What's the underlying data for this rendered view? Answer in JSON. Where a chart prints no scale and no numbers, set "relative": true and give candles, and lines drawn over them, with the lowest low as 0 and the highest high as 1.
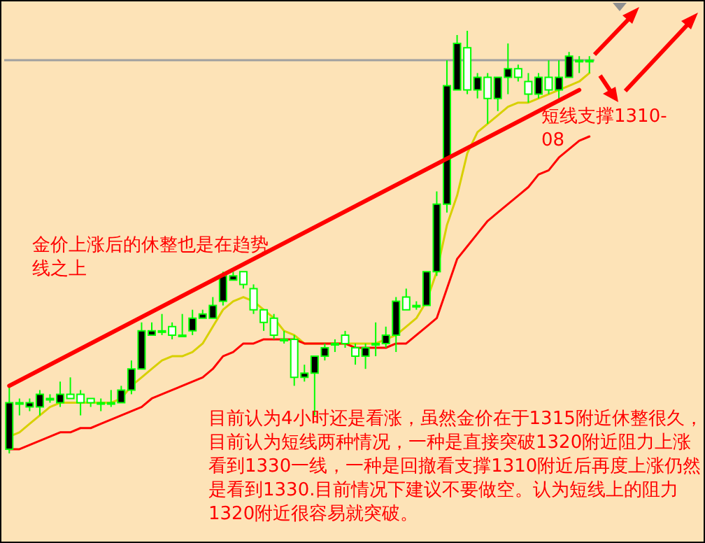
{
  "chart_data": {
    "type": "candlestick",
    "relative": true,
    "categories": [
      null,
      null,
      null,
      null,
      null,
      null,
      null,
      null,
      null,
      null,
      null,
      null,
      null,
      null,
      null,
      null,
      null,
      null,
      null,
      null,
      null,
      null,
      null,
      null,
      null,
      null,
      null,
      null,
      null,
      null,
      null,
      null,
      null,
      null,
      null,
      null,
      null,
      null,
      null,
      null,
      null,
      null,
      null,
      null,
      null,
      null,
      null,
      null,
      null,
      null,
      null,
      null,
      null,
      null,
      null,
      null,
      null,
      null
    ],
    "series": [
      {
        "color": "#00ff00",
        "ohlc": [
          [
            0.01,
            0.16,
            0,
            0.12
          ],
          [
            0.12,
            0.13,
            0.09,
            0.12
          ],
          [
            0.11,
            0.13,
            0.1,
            0.12
          ],
          [
            0.11,
            0.15,
            0.09,
            0.14
          ],
          [
            0.13,
            0.14,
            0.12,
            0.13
          ],
          [
            0.12,
            0.17,
            0.11,
            0.14
          ],
          [
            0.14,
            0.18,
            0.13,
            0.13
          ],
          [
            0.14,
            0.15,
            0.09,
            0.12
          ],
          [
            0.13,
            0.13,
            0.11,
            0.12
          ],
          [
            0.12,
            0.13,
            0.1,
            0.12
          ],
          [
            0.12,
            0.15,
            0.11,
            0.12
          ],
          [
            0.12,
            0.16,
            0.12,
            0.15
          ],
          [
            0.15,
            0.22,
            0.14,
            0.2
          ],
          [
            0.2,
            0.31,
            0.2,
            0.29
          ],
          [
            0.28,
            0.31,
            0.28,
            0.29
          ],
          [
            0.29,
            0.33,
            0.28,
            0.29
          ],
          [
            0.3,
            0.31,
            0.27,
            0.28
          ],
          [
            0.28,
            0.33,
            0.28,
            0.28
          ],
          [
            0.29,
            0.34,
            0.28,
            0.32
          ],
          [
            0.32,
            0.34,
            0.32,
            0.33
          ],
          [
            0.32,
            0.37,
            0.32,
            0.35
          ],
          [
            0.36,
            0.43,
            0.35,
            0.42
          ],
          [
            0.41,
            0.43,
            0.41,
            0.42
          ],
          [
            0.43,
            0.43,
            0.39,
            0.4
          ],
          [
            0.39,
            0.4,
            0.33,
            0.34
          ],
          [
            0.34,
            0.34,
            0.29,
            0.31
          ],
          [
            0.32,
            0.33,
            0.27,
            0.28
          ],
          [
            0.27,
            0.29,
            0.26,
            0.27
          ],
          [
            0.27,
            0.28,
            0.16,
            0.18
          ],
          [
            0.18,
            0.21,
            0.17,
            0.19
          ],
          [
            0.19,
            0.23,
            0.09,
            0.23
          ],
          [
            0.23,
            0.26,
            0.22,
            0.25
          ],
          [
            0.26,
            0.27,
            0.24,
            0.26
          ],
          [
            0.28,
            0.29,
            0.25,
            0.26
          ],
          [
            0.25,
            0.26,
            0.21,
            0.23
          ],
          [
            0.23,
            0.26,
            0.2,
            0.25
          ],
          [
            0.26,
            0.31,
            0.23,
            0.26
          ],
          [
            0.26,
            0.3,
            0.25,
            0.28
          ],
          [
            0.28,
            0.37,
            0.24,
            0.36
          ],
          [
            0.37,
            0.39,
            0.34,
            0.34
          ],
          [
            0.35,
            0.36,
            0.34,
            0.35
          ],
          [
            0.35,
            0.43,
            0.35,
            0.43
          ],
          [
            0.43,
            0.62,
            0.42,
            0.59
          ],
          [
            0.59,
            0.93,
            0.57,
            0.87
          ],
          [
            0.86,
            0.99,
            0.86,
            0.97
          ],
          [
            0.96,
            1,
            0.85,
            0.86
          ],
          [
            0.86,
            0.9,
            0.84,
            0.89
          ],
          [
            0.89,
            0.9,
            0.78,
            0.84
          ],
          [
            0.84,
            0.89,
            0.81,
            0.89
          ],
          [
            0.89,
            0.97,
            0.85,
            0.91
          ],
          [
            0.91,
            0.92,
            0.88,
            0.89
          ],
          [
            0.88,
            0.9,
            0.83,
            0.85
          ],
          [
            0.85,
            0.9,
            0.84,
            0.89
          ],
          [
            0.89,
            0.93,
            0.85,
            0.86
          ],
          [
            0.86,
            0.93,
            0.83,
            0.89
          ],
          [
            0.89,
            0.95,
            0.89,
            0.94
          ],
          [
            0.93,
            0.94,
            0.9,
            0.93
          ],
          [
            0.93,
            0.94,
            0.9,
            0.93
          ]
        ]
      },
      {
        "type": "line",
        "color": "#d8d000",
        "values": [
          0.04,
          0.05,
          0.07,
          0.09,
          0.11,
          0.12,
          0.12,
          0.12,
          0.12,
          0.12,
          0.12,
          0.13,
          0.16,
          0.18,
          0.2,
          0.22,
          0.23,
          0.23,
          0.24,
          0.26,
          0.3,
          0.34,
          0.36,
          0.37,
          0.36,
          0.34,
          0.32,
          0.29,
          0.28,
          0.26,
          0.26,
          0.26,
          0.26,
          0.26,
          0.26,
          0.26,
          0.26,
          0.27,
          0.28,
          0.3,
          0.32,
          0.36,
          0.43,
          0.54,
          0.61,
          0.71,
          0.76,
          0.78,
          0.8,
          0.82,
          0.83,
          0.83,
          0.84,
          0.85,
          0.86,
          0.87,
          0.88,
          0.9
        ]
      },
      {
        "type": "line",
        "color": "#ff0000",
        "values": [
          0.01,
          0.01,
          0.02,
          0.03,
          0.04,
          0.05,
          0.05,
          0.06,
          0.06,
          0.07,
          0.08,
          0.09,
          0.1,
          0.11,
          0.13,
          0.14,
          0.15,
          0.16,
          0.17,
          0.18,
          0.2,
          0.23,
          0.24,
          0.26,
          0.26,
          0.27,
          0.27,
          0.27,
          0.27,
          0.26,
          0.26,
          0.26,
          0.26,
          0.26,
          0.25,
          0.25,
          0.25,
          0.25,
          0.26,
          0.26,
          0.28,
          0.3,
          0.32,
          0.39,
          0.46,
          0.49,
          0.52,
          0.55,
          0.57,
          0.59,
          0.61,
          0.63,
          0.66,
          0.67,
          0.7,
          0.72,
          0.74,
          0.75
        ]
      },
      {
        "type": "line",
        "color": "#ff0000",
        "values": [
          0.16,
          null,
          null,
          null,
          null,
          null,
          null,
          null,
          null,
          null,
          null,
          null,
          null,
          null,
          null,
          null,
          null,
          null,
          null,
          null,
          null,
          null,
          null,
          null,
          null,
          null,
          null,
          null,
          null,
          null,
          null,
          null,
          null,
          null,
          null,
          null,
          null,
          null,
          null,
          null,
          null,
          null,
          null,
          null,
          null,
          null,
          null,
          null,
          null,
          null,
          null,
          null,
          null,
          null,
          null,
          null,
          0.86,
          null
        ]
      }
    ],
    "ref_lines": [
      {
        "axis": "y",
        "value": 0.93,
        "color": "#a0a0a0"
      }
    ],
    "annotations": [
      "金价上涨后的休整也是在趋势线之上",
      "短线支撑1310-08",
      "目前认为4小时还是看涨，虽然金价在于1315附近休整很久，目前认为短线两种情况，一种是直接突破1320附近阻力上涨看到1330一线，一种是回撤看支撑1310附近后再度上涨仍然是看到1330.目前情况下建议不要做空。认为短线上的阻力1320附近很容易就突破。"
    ]
  }
}
